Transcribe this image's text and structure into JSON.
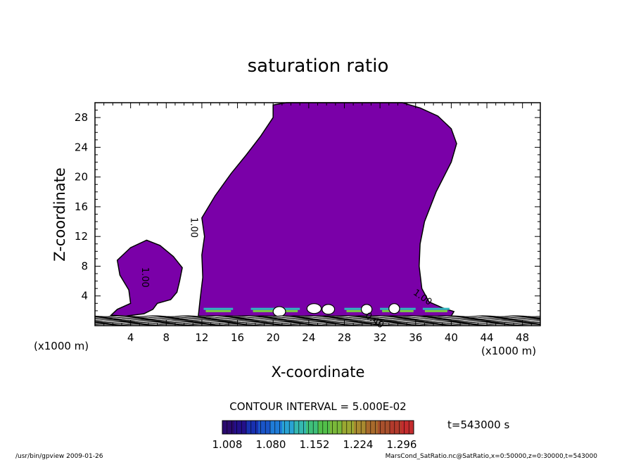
{
  "chart_data": {
    "type": "contour",
    "title": "saturation ratio",
    "xlabel": "X-coordinate",
    "ylabel": "Z-coordinate",
    "x_unit_label": "(x1000 m)",
    "x_unit_label_left": "(x1000 m)",
    "xlim": [
      0,
      50
    ],
    "ylim": [
      0,
      30
    ],
    "x_ticks": [
      4,
      8,
      12,
      16,
      20,
      24,
      28,
      32,
      36,
      40,
      44,
      48
    ],
    "y_ticks": [
      4,
      8,
      12,
      16,
      20,
      24,
      28
    ],
    "contour_labels": [
      {
        "text": "1.00",
        "x": 10.8,
        "y": 13.2
      },
      {
        "text": "1.00",
        "x": 5.3,
        "y": 6.5
      },
      {
        "text": "1.00",
        "x": 36.6,
        "y": 3.5
      },
      {
        "text": "0.40",
        "x": 31.2,
        "y": 0.4
      }
    ],
    "main_region": [
      [
        11.6,
        1.3
      ],
      [
        11.8,
        3.5
      ],
      [
        12.1,
        6.5
      ],
      [
        12.0,
        9.5
      ],
      [
        12.3,
        12
      ],
      [
        12.0,
        14.5
      ],
      [
        13.5,
        17.5
      ],
      [
        15.3,
        20.5
      ],
      [
        17.0,
        23
      ],
      [
        18.6,
        25.5
      ],
      [
        20.0,
        28
      ],
      [
        20.0,
        29.7
      ],
      [
        21.5,
        30
      ],
      [
        34.5,
        30
      ],
      [
        36.5,
        29.3
      ],
      [
        38.5,
        28.2
      ],
      [
        40.0,
        26.5
      ],
      [
        40.6,
        24.5
      ],
      [
        40.0,
        22
      ],
      [
        38.3,
        18
      ],
      [
        37.0,
        14
      ],
      [
        36.5,
        11
      ],
      [
        36.4,
        8
      ],
      [
        36.7,
        5
      ],
      [
        37.5,
        3.2
      ],
      [
        39.0,
        2.4
      ],
      [
        40.3,
        1.9
      ],
      [
        40.0,
        1.3
      ]
    ],
    "small_region": [
      [
        1.8,
        1.4
      ],
      [
        2.5,
        2.2
      ],
      [
        4.0,
        3.0
      ],
      [
        3.8,
        4.8
      ],
      [
        2.8,
        6.8
      ],
      [
        2.5,
        8.8
      ],
      [
        4.0,
        10.5
      ],
      [
        5.8,
        11.5
      ],
      [
        7.3,
        10.8
      ],
      [
        8.8,
        9.3
      ],
      [
        9.8,
        7.8
      ],
      [
        9.5,
        6.0
      ],
      [
        9.2,
        4.5
      ],
      [
        8.5,
        3.5
      ],
      [
        7.0,
        3.0
      ],
      [
        6.5,
        2.2
      ],
      [
        5.5,
        1.6
      ],
      [
        3.5,
        1.3
      ]
    ],
    "colorbar": {
      "tick_labels": [
        "1.008",
        "1.080",
        "1.152",
        "1.224",
        "1.296"
      ],
      "colors": [
        "#2a0a6e",
        "#23108a",
        "#1830b0",
        "#1a55c8",
        "#1f7cd8",
        "#29a3d4",
        "#35b8b0",
        "#3fbf7a",
        "#52bf4a",
        "#7ab83a",
        "#9aa832",
        "#a88a30",
        "#a86a2c",
        "#a8502c",
        "#b23a2c",
        "#c42c2e"
      ]
    },
    "contour_interval_label": "CONTOUR INTERVAL = 5.000E-02",
    "time_label": "t=543000  s",
    "footer_left": "/usr/bin/gpview  2009-01-26",
    "footer_right": "MarsCond_SatRatio.nc@SatRatio,x=0:50000,z=0:30000,t=543000",
    "fill_color": "#7a00a8"
  }
}
